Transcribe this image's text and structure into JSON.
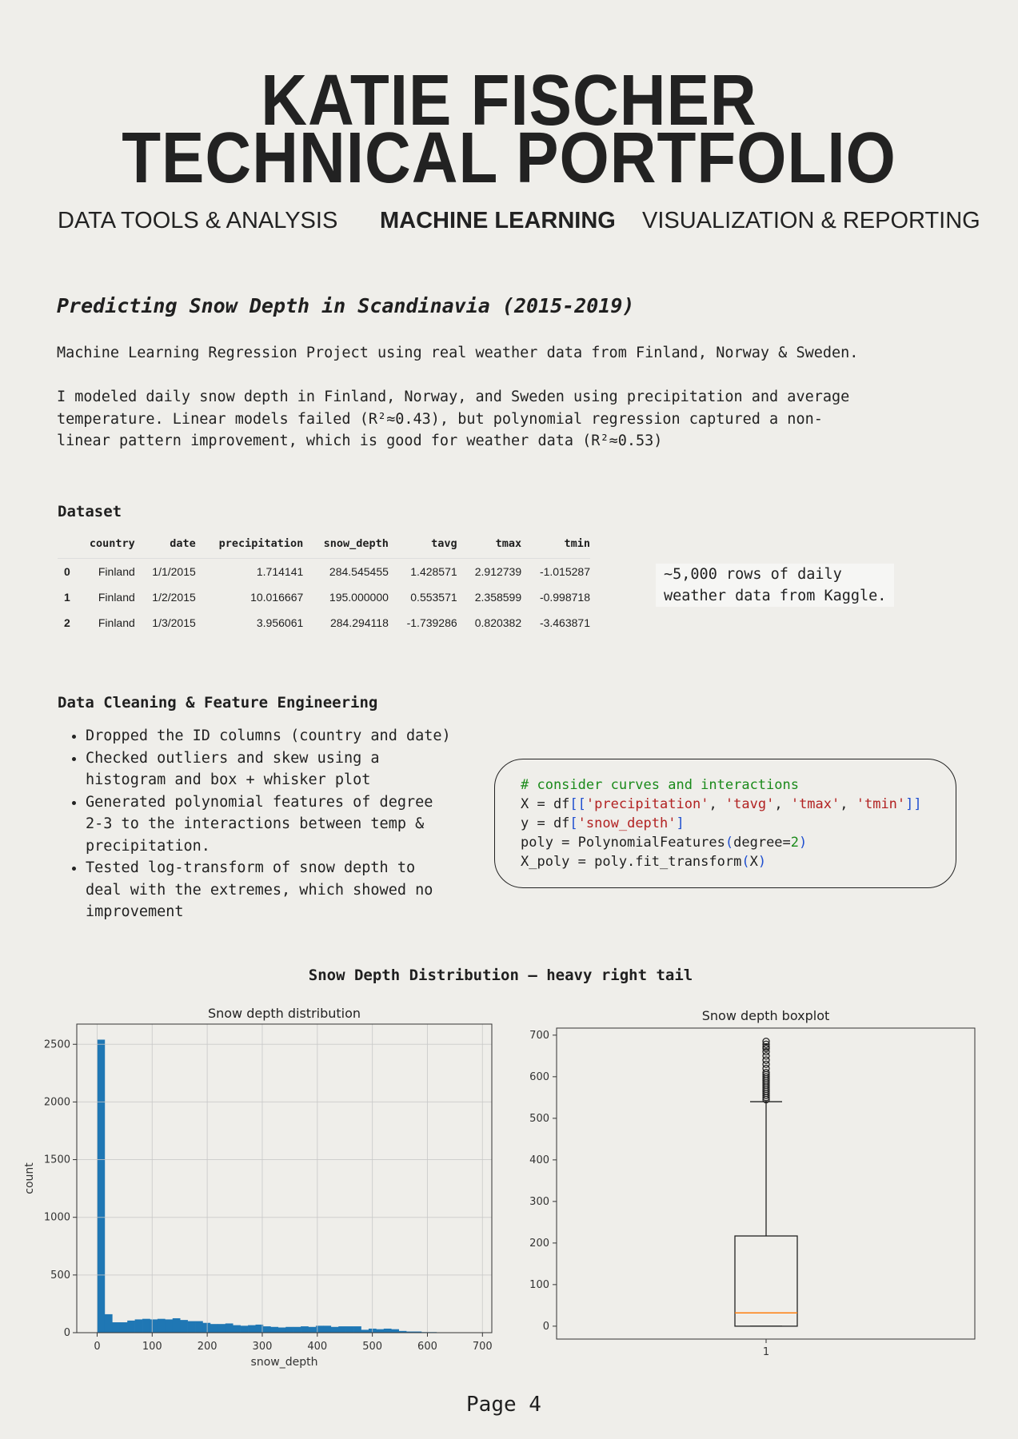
{
  "header": {
    "title_line1": "KATIE FISCHER",
    "title_line2": "TECHNICAL PORTFOLIO"
  },
  "nav": [
    {
      "label": "DATA TOOLS & ANALYSIS",
      "active": false
    },
    {
      "label": "MACHINE LEARNING",
      "active": true
    },
    {
      "label": "VISUALIZATION & REPORTING",
      "active": false
    }
  ],
  "project": {
    "title": "Predicting Snow Depth in Scandinavia (2015-2019)",
    "subtitle": "Machine Learning Regression Project using real weather data from Finland, Norway & Sweden.",
    "description": [
      "I modeled daily snow depth in Finland, Norway, and Sweden using precipitation and average",
      "temperature. Linear models failed (R²≈0.43), but polynomial regression captured a non-",
      "linear pattern improvement, which is good for weather data (R²≈0.53)"
    ]
  },
  "dataset": {
    "heading": "Dataset",
    "columns": [
      "",
      "country",
      "date",
      "precipitation",
      "snow_depth",
      "tavg",
      "tmax",
      "tmin"
    ],
    "rows": [
      [
        "0",
        "Finland",
        "1/1/2015",
        "1.714141",
        "284.545455",
        "1.428571",
        "2.912739",
        "-1.015287"
      ],
      [
        "1",
        "Finland",
        "1/2/2015",
        "10.016667",
        "195.000000",
        "0.553571",
        "2.358599",
        "-0.998718"
      ],
      [
        "2",
        "Finland",
        "1/3/2015",
        "3.956061",
        "284.294118",
        "-1.739286",
        "0.820382",
        "-3.463871"
      ]
    ],
    "note": [
      "~5,000 rows of daily",
      "weather data from Kaggle."
    ]
  },
  "cleaning": {
    "heading": "Data Cleaning & Feature Engineering",
    "bullets": [
      [
        "Dropped the ID columns (country and date)"
      ],
      [
        "Checked outliers and skew using a",
        "histogram and box + whisker plot"
      ],
      [
        "Generated polynomial features of degree",
        "2-3 to the interactions between temp &",
        "precipitation."
      ],
      [
        "Tested log-transform of snow depth to",
        "deal with the extremes, which showed no",
        "improvement"
      ]
    ]
  },
  "code": {
    "comment": "# consider curves and interactions",
    "line2": {
      "a": "X = df",
      "b": "[[",
      "s1": "'precipitation'",
      "c1": ", ",
      "s2": "'tavg'",
      "c2": ", ",
      "s3": "'tmax'",
      "c3": ", ",
      "s4": "'tmin'",
      "d": "]]"
    },
    "line3": {
      "a": "y = df",
      "b": "[",
      "s": "'snow_depth'",
      "d": "]"
    },
    "line4": {
      "a": "poly = PolynomialFeatures",
      "b": "(",
      "c": "degree=",
      "n": "2",
      "d": ")"
    },
    "line5": {
      "a": "X_poly = poly.fit_transform",
      "b": "(",
      "c": "X",
      "d": ")"
    }
  },
  "figure_title": "Snow Depth Distribution – heavy right tail",
  "chart_data": [
    {
      "type": "bar",
      "title": "Snow depth distribution",
      "xlabel": "snow_depth",
      "ylabel": "count",
      "bin_width": 13.7,
      "values": [
        2540,
        160,
        90,
        90,
        105,
        115,
        120,
        115,
        120,
        115,
        125,
        110,
        100,
        100,
        85,
        75,
        75,
        80,
        65,
        60,
        65,
        70,
        55,
        50,
        45,
        50,
        50,
        55,
        50,
        60,
        60,
        50,
        55,
        55,
        55,
        25,
        35,
        30,
        35,
        30,
        15,
        10,
        10,
        5,
        5,
        3,
        3,
        2,
        2,
        1
      ],
      "xlim": [
        -37,
        717
      ],
      "ylim": [
        0,
        2675
      ],
      "xticks": [
        0,
        100,
        200,
        300,
        400,
        500,
        600,
        700
      ],
      "yticks": [
        0,
        500,
        1000,
        1500,
        2000,
        2500
      ],
      "grid": true,
      "color": "#1f77b4"
    },
    {
      "type": "box",
      "title": "Snow depth boxplot",
      "category": "1",
      "q1": 0,
      "median": 32,
      "q3": 217,
      "whisker_low": 0,
      "whisker_high": 540,
      "outliers": [
        545,
        550,
        555,
        560,
        565,
        570,
        575,
        580,
        585,
        590,
        595,
        600,
        605,
        610,
        620,
        630,
        640,
        650,
        660,
        668,
        672,
        678,
        685
      ],
      "ylim": [
        -31,
        717
      ],
      "yticks": [
        0,
        100,
        200,
        300,
        400,
        500,
        600,
        700
      ],
      "median_color": "#ff7f0e",
      "grid": false
    }
  ],
  "footer": {
    "page": "Page 4"
  }
}
